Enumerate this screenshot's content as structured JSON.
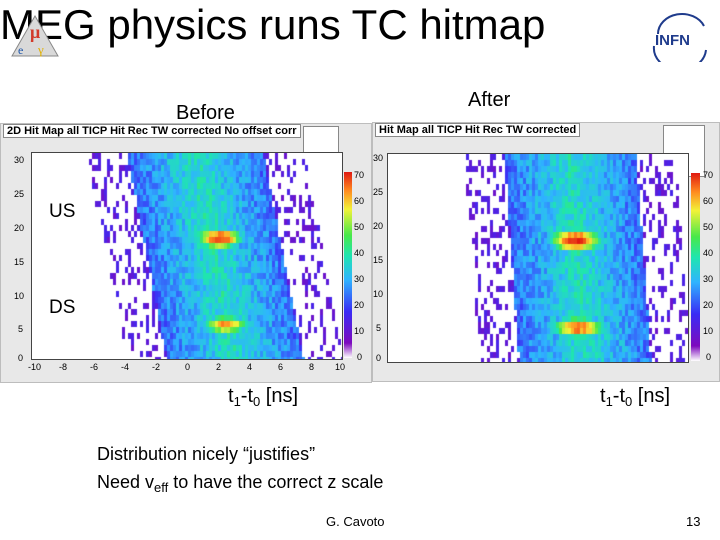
{
  "slide": {
    "title": "MEG physics runs TC hitmap",
    "page_number": "13",
    "author": "G. Cavoto"
  },
  "logos": {
    "left_icon": "meg-logo-icon",
    "right_text": "INFN"
  },
  "labels": {
    "before": "Before",
    "after": "After",
    "us": "US",
    "ds": "DS"
  },
  "xaxis_caption": {
    "base": "t",
    "sub1": "1",
    "mid": "-t",
    "sub0": "0",
    "unit": " [ns]"
  },
  "notes": {
    "line1": "Distribution nicely “justifies”",
    "line2_prefix": "Need v",
    "line2_sub": "eff",
    "line2_suffix": " to have the correct z scale"
  },
  "plots": {
    "left": {
      "title": "2D Hit Map all TICP Hit Rec TW corrected No offset corr"
    },
    "right": {
      "title": "Hit Map all TICP Hit Rec TW corrected"
    },
    "y_ticks": [
      "30",
      "25",
      "20",
      "15",
      "10",
      "5",
      "0"
    ],
    "x_ticks": [
      "-10",
      "-8",
      "-6",
      "-4",
      "-2",
      "0",
      "2",
      "4",
      "6",
      "8",
      "10"
    ],
    "z_ticks": [
      "70",
      "60",
      "50",
      "40",
      "30",
      "20",
      "10",
      "0"
    ]
  }
}
